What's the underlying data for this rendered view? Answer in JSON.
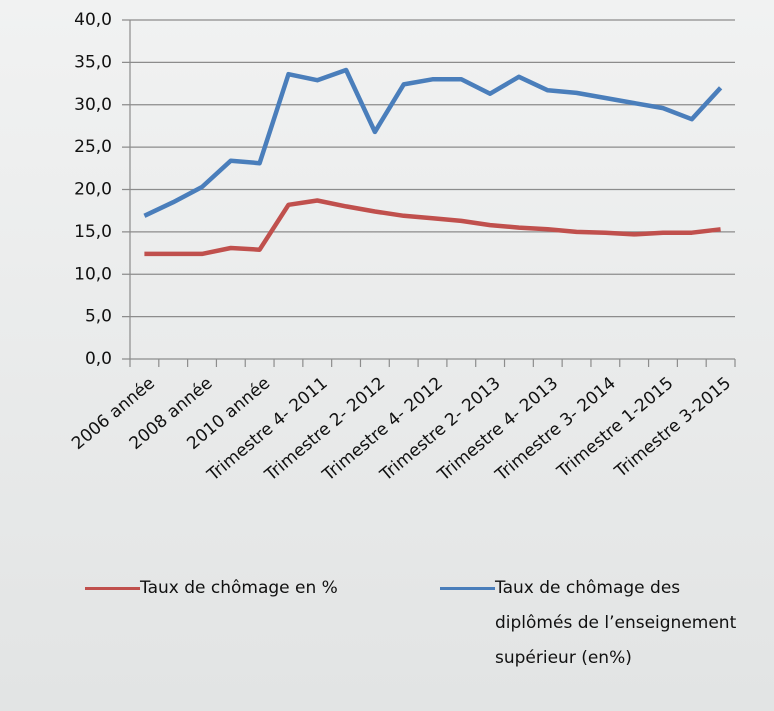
{
  "chart_data": {
    "type": "line",
    "categories": [
      "2006 année",
      null,
      "2008 année",
      null,
      "2010 année",
      null,
      "Trimestre 4- 2011",
      null,
      "Trimestre 2- 2012",
      null,
      "Trimestre 4- 2012",
      null,
      "Trimestre 2- 2013",
      null,
      "Trimestre 4- 2013",
      null,
      "Trimestre 3- 2014",
      null,
      "Trimestre 1-2015",
      null,
      "Trimestre 3-2015"
    ],
    "series": [
      {
        "name": "Taux de chômage en %",
        "color": "#c0504d",
        "values": [
          12.4,
          12.4,
          12.4,
          13.1,
          12.9,
          18.2,
          18.7,
          18.0,
          17.4,
          16.9,
          16.6,
          16.3,
          15.8,
          15.5,
          15.3,
          15.0,
          14.9,
          14.7,
          14.9,
          14.9,
          15.3
        ]
      },
      {
        "name": "Taux de chômage des diplômés de l’enseignement supérieur (en%)",
        "color": "#4a7ebb",
        "values": [
          16.9,
          18.5,
          20.3,
          23.4,
          23.1,
          33.6,
          32.9,
          34.1,
          26.8,
          32.4,
          33.0,
          33.0,
          31.3,
          33.3,
          31.7,
          31.4,
          30.8,
          30.2,
          29.6,
          28.3,
          32.0
        ]
      }
    ],
    "ylim": [
      0,
      40
    ],
    "yticks": [
      {
        "value": 0,
        "label": "0,0"
      },
      {
        "value": 5,
        "label": "5,0"
      },
      {
        "value": 10,
        "label": "10,0"
      },
      {
        "value": 15,
        "label": "15,0"
      },
      {
        "value": 20,
        "label": "20,0"
      },
      {
        "value": 25,
        "label": "25,0"
      },
      {
        "value": 30,
        "label": "30,0"
      },
      {
        "value": 35,
        "label": "35,0"
      },
      {
        "value": 40,
        "label": "40,0"
      }
    ],
    "grid": true
  }
}
